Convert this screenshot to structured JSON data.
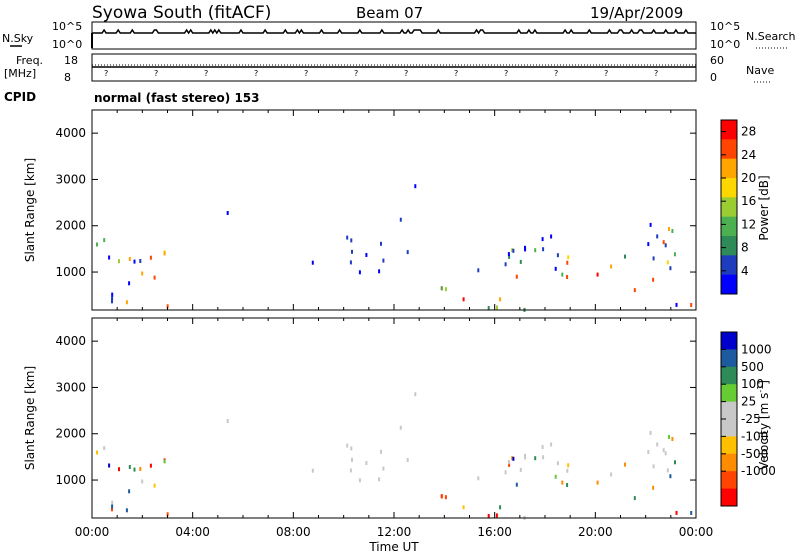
{
  "header": {
    "station": "Syowa South (fitACF)",
    "beam": "Beam 07",
    "date": "19/Apr/2009"
  },
  "top_panel": {
    "nsky_label": "N.Sky",
    "nsky_ticks": [
      "10^5",
      "10^0"
    ],
    "nsearch_label": "N.Search",
    "nsearch_ticks": [
      "10^5",
      "10^0"
    ],
    "freq_label": "Freq.",
    "freq_unit": "[MHz]",
    "freq_ticks": [
      "18",
      "8"
    ],
    "nave_label": "Nave",
    "nave_ticks": [
      "60",
      "0"
    ],
    "cpid_label": "CPID",
    "cpid_value": "normal (fast stereo) 153"
  },
  "colors": {
    "power_scale": [
      "#0000ff",
      "#1e3cbe",
      "#2e8b57",
      "#4caf50",
      "#9acd32",
      "#ffd700",
      "#ffa500",
      "#ff4500",
      "#ff0000"
    ],
    "velocity_scale": [
      "#0000cd",
      "#1e5aa0",
      "#2e8b57",
      "#66cc33",
      "#c8c8c8",
      "#c8c8c8",
      "#ffc000",
      "#ff8c00",
      "#ff4500",
      "#ff0000"
    ]
  },
  "chart_data": [
    {
      "type": "heatmap",
      "name": "power",
      "xlabel": "",
      "ylabel": "Slant Range [km]",
      "ylim": [
        180,
        4500
      ],
      "yticks": [
        "1000",
        "2000",
        "3000",
        "4000"
      ],
      "colorbar_label": "Power [dB]",
      "colorbar_ticks": [
        "4",
        "8",
        "12",
        "16",
        "20",
        "24",
        "28"
      ],
      "colorbar_range": [
        0,
        30
      ]
    },
    {
      "type": "heatmap",
      "name": "velocity",
      "xlabel": "Time UT",
      "ylabel": "Slant Range [km]",
      "ylim": [
        180,
        4500
      ],
      "yticks": [
        "1000",
        "2000",
        "3000",
        "4000"
      ],
      "xticks": [
        "00:00",
        "04:00",
        "08:00",
        "12:00",
        "16:00",
        "20:00",
        "00:00"
      ],
      "colorbar_label": "Velocity [m s",
      "colorbar_label_exp": "-1",
      "colorbar_label_close": "]",
      "colorbar_ticks": [
        "1000",
        "500",
        "100",
        "25",
        "-25",
        "-100",
        "-500",
        "-1000"
      ]
    }
  ]
}
